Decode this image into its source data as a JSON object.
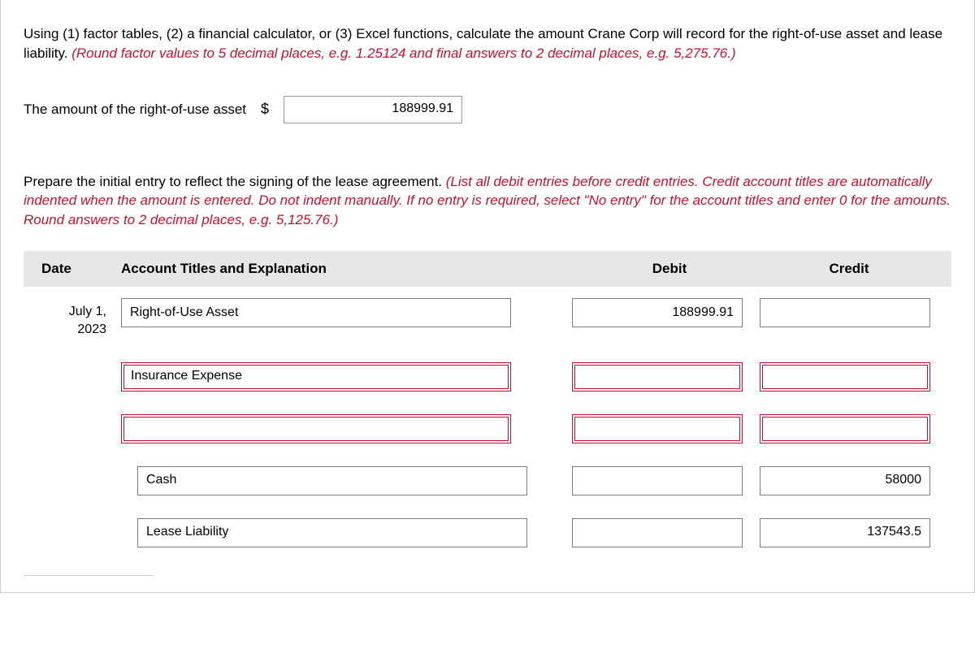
{
  "colors": {
    "text": "#000000",
    "accent_red": "#c8102e",
    "header_bg": "#e7e7e7",
    "border_gray": "#7a7a7a",
    "page_border": "#cccccc",
    "background": "#ffffff"
  },
  "question1": {
    "text_plain": "Using (1) factor tables, (2) a financial calculator, or (3) Excel functions, calculate the amount Crane Corp will record for the right-of-use asset and lease liability. ",
    "text_emph": "(Round factor values to 5 decimal places, e.g. 1.25124 and final answers to 2 decimal places, e.g. 5,275.76.)"
  },
  "amount_row": {
    "label": "The amount of the right-of-use asset",
    "currency": "$",
    "value": "188999.91"
  },
  "question2": {
    "text_plain": "Prepare the initial entry to reflect the signing of the lease agreement. ",
    "text_emph": "(List all debit entries before credit entries. Credit account titles are automatically indented when the amount is entered. Do not indent manually. If no entry is required, select \"No entry\" for the account titles and enter 0 for the amounts. Round answers to 2 decimal places, e.g. 5,125.76.)"
  },
  "table": {
    "headers": {
      "date": "Date",
      "acct": "Account Titles and Explanation",
      "debit": "Debit",
      "credit": "Credit"
    },
    "rows": [
      {
        "date_l1": "July 1,",
        "date_l2": "2023",
        "account": "Right-of-Use Asset",
        "debit": "188999.91",
        "credit": "",
        "indent": false,
        "error": false
      },
      {
        "date_l1": "",
        "date_l2": "",
        "account": "Insurance Expense",
        "debit": "",
        "credit": "",
        "indent": false,
        "error": true
      },
      {
        "date_l1": "",
        "date_l2": "",
        "account": "",
        "debit": "",
        "credit": "",
        "indent": false,
        "error": true
      },
      {
        "date_l1": "",
        "date_l2": "",
        "account": "Cash",
        "debit": "",
        "credit": "58000",
        "indent": true,
        "error": false
      },
      {
        "date_l1": "",
        "date_l2": "",
        "account": "Lease Liability",
        "debit": "",
        "credit": "137543.5",
        "indent": true,
        "error": false
      }
    ]
  }
}
